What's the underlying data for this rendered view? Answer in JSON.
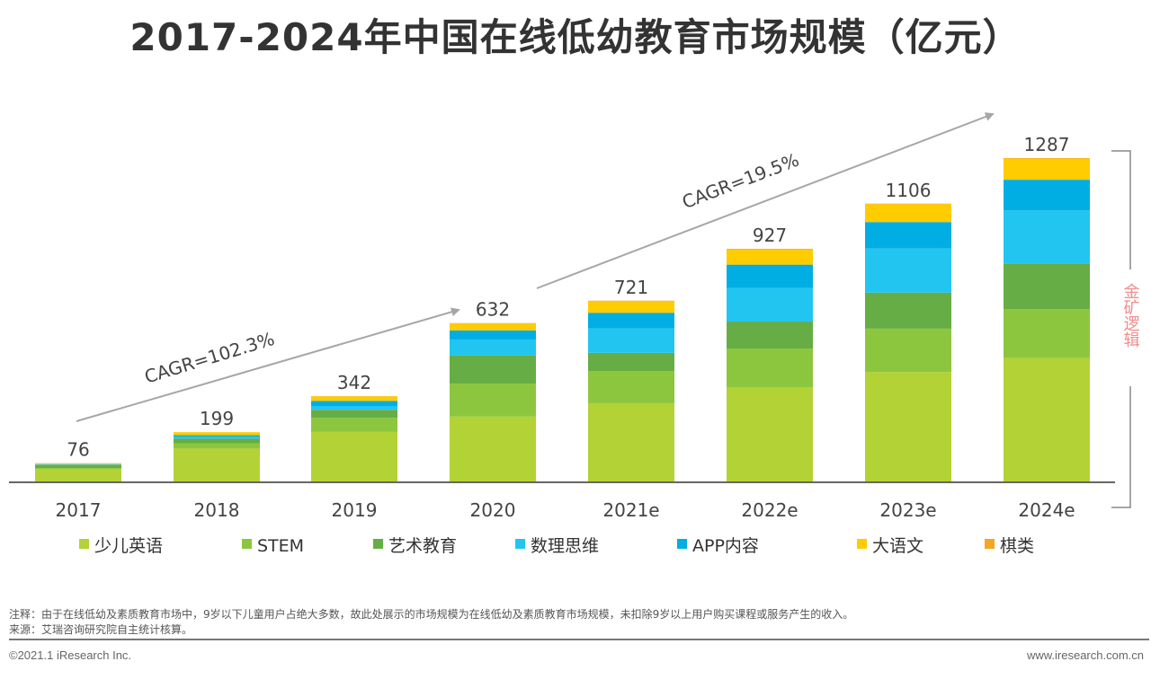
{
  "title": "2017-2024年中国在线低幼教育市场规模（亿元）",
  "chart_data": {
    "type": "bar",
    "stacked": true,
    "title": "2017-2024年中国在线低幼教育市场规模（亿元）",
    "categories": [
      "2017",
      "2018",
      "2019",
      "2020",
      "2021e",
      "2022e",
      "2023e",
      "2024e"
    ],
    "totals": [
      76,
      199,
      342,
      632,
      721,
      927,
      1106,
      1287
    ],
    "series": [
      {
        "name": "少儿英语",
        "color": "#b3d235",
        "values": [
          52,
          134,
          200,
          261,
          314,
          378,
          438,
          494
        ]
      },
      {
        "name": "STEM",
        "color": "#8cc63f",
        "values": [
          5,
          20,
          56,
          131,
          128,
          153,
          172,
          194
        ]
      },
      {
        "name": "艺术教育",
        "color": "#66ad45",
        "values": [
          12,
          20,
          32,
          112,
          72,
          107,
          143,
          181
        ]
      },
      {
        "name": "数理思维",
        "color": "#22c5f0",
        "values": [
          2,
          7,
          15,
          63,
          97,
          134,
          175,
          210
        ]
      },
      {
        "name": "APP内容",
        "color": "#00aee3",
        "values": [
          1,
          6,
          20,
          36,
          62,
          92,
          105,
          122
        ]
      },
      {
        "name": "大语文",
        "color": "#ffcc00",
        "values": [
          3,
          12,
          18,
          27,
          46,
          61,
          71,
          84
        ]
      },
      {
        "name": "棋类",
        "color": "#f5a623",
        "values": [
          1,
          0,
          1,
          2,
          2,
          2,
          2,
          2
        ]
      }
    ],
    "annotations": [
      "CAGR=102.3%",
      "CAGR=19.5%"
    ],
    "bracket_label": "金矿逻辑",
    "legend_position": "bottom",
    "grid": false
  },
  "notes": {
    "note": "注释：由于在线低幼及素质教育市场中，9岁以下儿童用户占绝大多数，故此处展示的市场规模为在线低幼及素质教育市场规模，未扣除9岁以上用户购买课程或服务产生的收入。",
    "source": "来源：艾瑞咨询研究院自主统计核算。"
  },
  "footer": {
    "copyright": "©2021.1 iResearch Inc.",
    "website": "www.iresearch.com.cn"
  }
}
